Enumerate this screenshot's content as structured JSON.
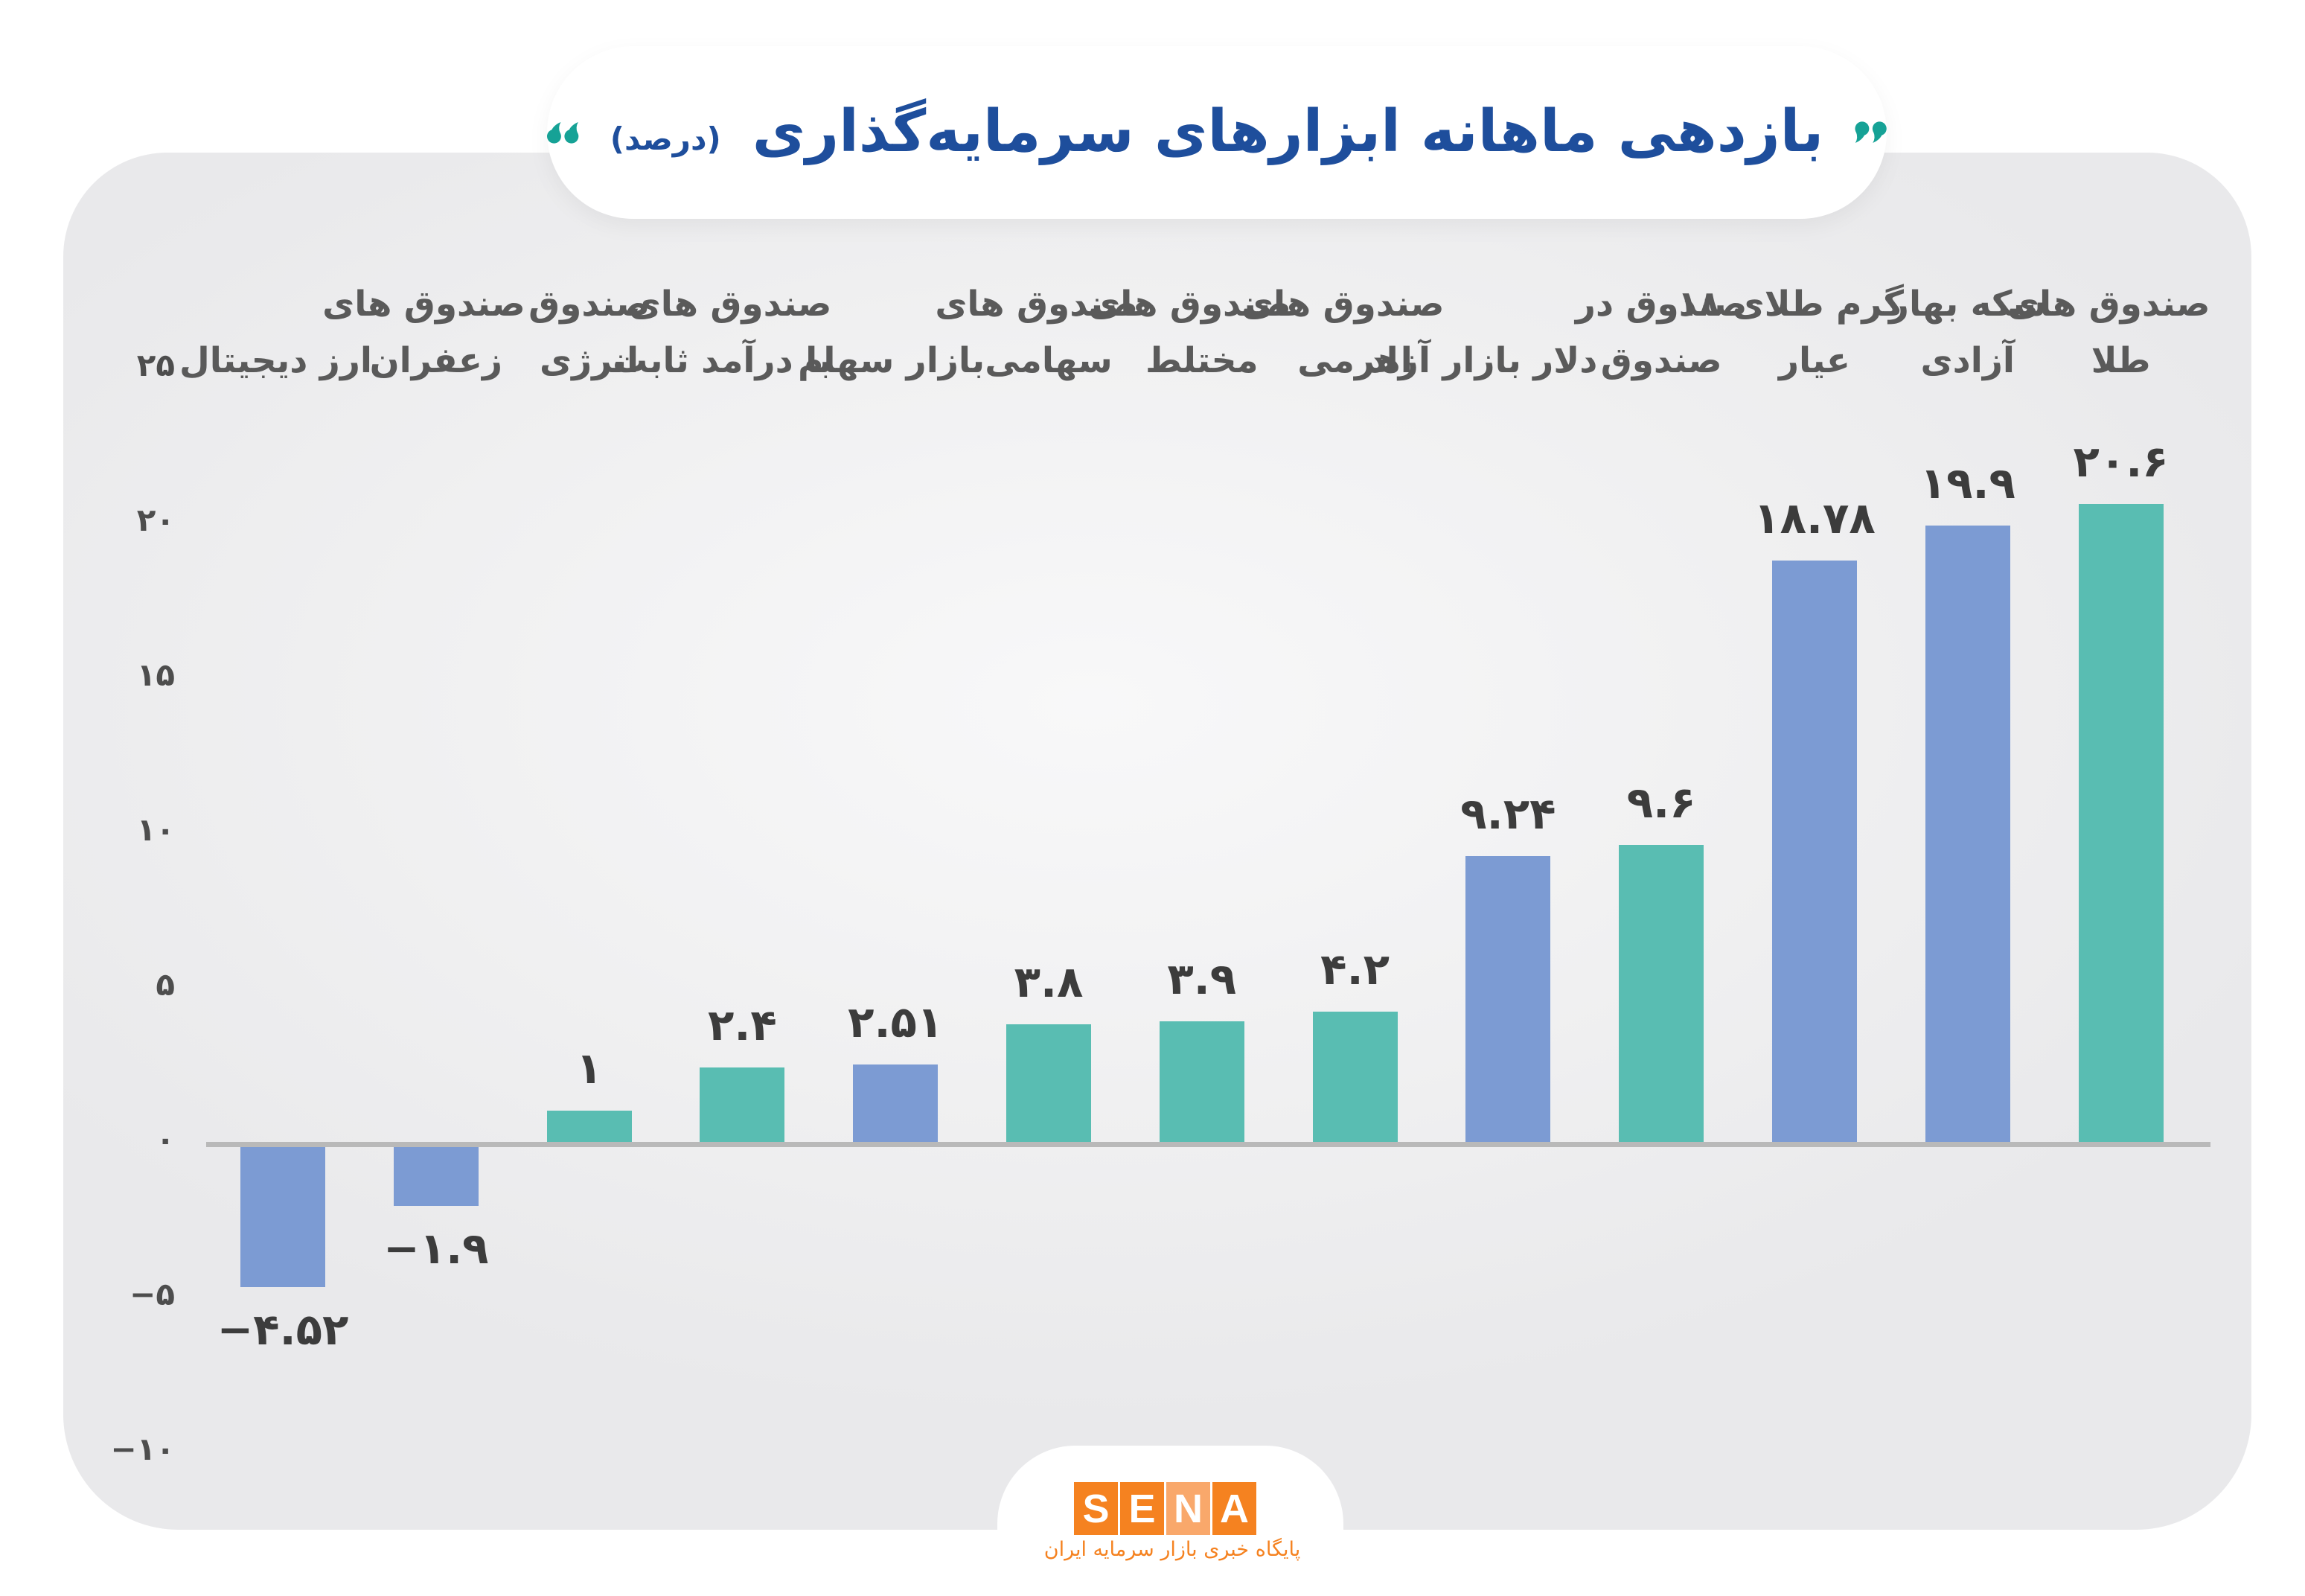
{
  "title": {
    "text": "بازدهی ماهانه ابزارهای سرمایه‌گذاری",
    "unit": "(درصد)"
  },
  "colors": {
    "title_blue": "#1E4E9C",
    "accent_teal": "#16A296",
    "bar_teal": "#59BDB2",
    "bar_blue": "#7C9BD3",
    "axis_gray": "#B9B9B9",
    "orange": "#F58220",
    "orange_light": "#F9A86B"
  },
  "footer": {
    "logo_letters": [
      "S",
      "E",
      "N",
      "A"
    ],
    "caption": "پایگاه خبری بازار سرمایه ایران"
  },
  "chart_data": {
    "type": "bar",
    "title": "بازدهی ماهانه ابزارهای سرمایه‌گذاری (درصد)",
    "xlabel": "",
    "ylabel": "",
    "ylim": [
      -10,
      25
    ],
    "grid": false,
    "yticks": [
      {
        "value": 25,
        "label": "۲۵"
      },
      {
        "value": 20,
        "label": "۲۰"
      },
      {
        "value": 15,
        "label": "۱۵"
      },
      {
        "value": 10,
        "label": "۱۰"
      },
      {
        "value": 5,
        "label": "۵"
      },
      {
        "value": 0,
        "label": "۰"
      },
      {
        "value": -5,
        "label": "−۵"
      },
      {
        "value": -10,
        "label": "−۱۰"
      }
    ],
    "categories": [
      {
        "name": "digital-currency",
        "label_line1": "",
        "label_line2": "ارز دیجیتال",
        "value": -4.52,
        "value_label": "−۴.۵۲",
        "color": "blue"
      },
      {
        "name": "saffron-funds",
        "label_line1": "صندوق های",
        "label_line2": "زعفران",
        "value": -1.9,
        "value_label": "−۱.۹",
        "color": "blue"
      },
      {
        "name": "energy-fund",
        "label_line1": "صندوق",
        "label_line2": "انرژی",
        "value": 1,
        "value_label": "۱",
        "color": "teal"
      },
      {
        "name": "fixed-income-funds",
        "label_line1": "صندوق های",
        "label_line2": "با درآمد ثابت",
        "value": 2.4,
        "value_label": "۲.۴",
        "color": "teal"
      },
      {
        "name": "stock-market",
        "label_line1": "",
        "label_line2": "بازار سهام",
        "value": 2.51,
        "value_label": "۲.۵۱",
        "color": "blue"
      },
      {
        "name": "equity-funds",
        "label_line1": "صندوق های",
        "label_line2": "سهامی",
        "value": 3.8,
        "value_label": "۳.۸",
        "color": "teal"
      },
      {
        "name": "mixed-funds",
        "label_line1": "صندوق های",
        "label_line2": "مختلط",
        "value": 3.9,
        "value_label": "۳.۹",
        "color": "teal"
      },
      {
        "name": "leveraged-funds",
        "label_line1": "صندوق های",
        "label_line2": "اهرمی",
        "value": 4.2,
        "value_label": "۴.۲",
        "color": "teal"
      },
      {
        "name": "free-market-dollar",
        "label_line1": "",
        "label_line2": "دلار بازار آزاد",
        "value": 9.24,
        "value_label": "۹.۲۴",
        "color": "blue"
      },
      {
        "name": "fund-of-funds",
        "label_line1": "صندوق در",
        "label_line2": "صندوق",
        "value": 9.6,
        "value_label": "۹.۶",
        "color": "teal"
      },
      {
        "name": "gold-gram-18k",
        "label_line1": "گرم طلای ۱۸",
        "label_line2": "عیار",
        "value": 18.78,
        "value_label": "۱۸.۷۸",
        "color": "blue"
      },
      {
        "name": "bahar-azadi-coin",
        "label_line1": "سکه بهار",
        "label_line2": "آزادی",
        "value": 19.9,
        "value_label": "۱۹.۹",
        "color": "blue"
      },
      {
        "name": "gold-funds",
        "label_line1": "صندوق های",
        "label_line2": "طلا",
        "value": 20.6,
        "value_label": "۲۰.۶",
        "color": "teal"
      }
    ]
  }
}
